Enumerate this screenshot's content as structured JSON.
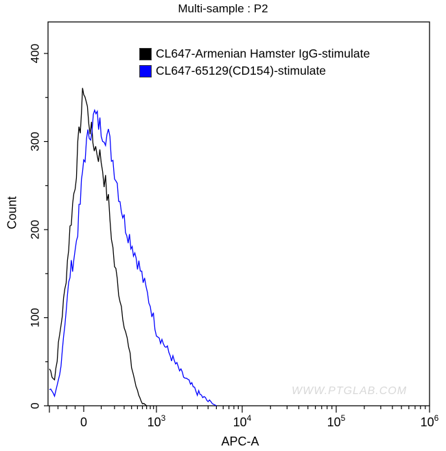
{
  "chart_data": {
    "type": "line",
    "subtype": "flow-cytometry-histogram",
    "title": "Multi-sample : P2",
    "xlabel": "APC-A",
    "ylabel": "Count",
    "x_scale": "biexponential (linear near 0, log above ~10^3)",
    "xlim": [
      -200,
      1000000
    ],
    "ylim": [
      0,
      435
    ],
    "x_ticks": [
      "0",
      "10^3",
      "10^4",
      "10^5",
      "10^6"
    ],
    "y_ticks": [
      "0",
      "100",
      "200",
      "300",
      "400"
    ],
    "grid": false,
    "legend_position": "top-right inside",
    "watermark": "WWW.PTGLAB.COM",
    "series": [
      {
        "name": "CL647-Armenian Hamster IgG-stimulate",
        "color": "#000000",
        "x": [
          -200,
          -170,
          -140,
          -110,
          -80,
          -50,
          -20,
          0,
          20,
          50,
          100,
          150,
          200,
          300,
          400,
          500,
          600,
          700
        ],
        "values": [
          42,
          30,
          80,
          130,
          200,
          255,
          320,
          362,
          335,
          300,
          280,
          230,
          160,
          95,
          45,
          15,
          4,
          0
        ]
      },
      {
        "name": "CL647-65129(CD154)-stimulate",
        "color": "#0000ff",
        "x": [
          -200,
          -170,
          -140,
          -110,
          -80,
          -50,
          -20,
          0,
          30,
          60,
          100,
          150,
          200,
          300,
          500,
          800,
          1000,
          1500,
          2000,
          3000,
          4000,
          5000
        ],
        "values": [
          20,
          8,
          35,
          95,
          150,
          175,
          230,
          280,
          310,
          330,
          315,
          305,
          270,
          210,
          165,
          115,
          85,
          55,
          35,
          15,
          5,
          0
        ]
      }
    ]
  },
  "title": "Multi-sample : P2",
  "axes": {
    "xlabel": "APC-A",
    "ylabel": "Count",
    "x_tick_labels": [
      {
        "base": "0",
        "exp": ""
      },
      {
        "base": "10",
        "exp": "3"
      },
      {
        "base": "10",
        "exp": "4"
      },
      {
        "base": "10",
        "exp": "5"
      },
      {
        "base": "10",
        "exp": "6"
      }
    ],
    "y_tick_labels": [
      "0",
      "100",
      "200",
      "300",
      "400"
    ]
  },
  "legend": {
    "items": [
      {
        "label": "CL647-Armenian Hamster IgG-stimulate",
        "color": "#000000"
      },
      {
        "label": "CL647-65129(CD154)-stimulate",
        "color": "#0000ff"
      }
    ]
  },
  "watermark": "WWW.PTGLAB.COM"
}
